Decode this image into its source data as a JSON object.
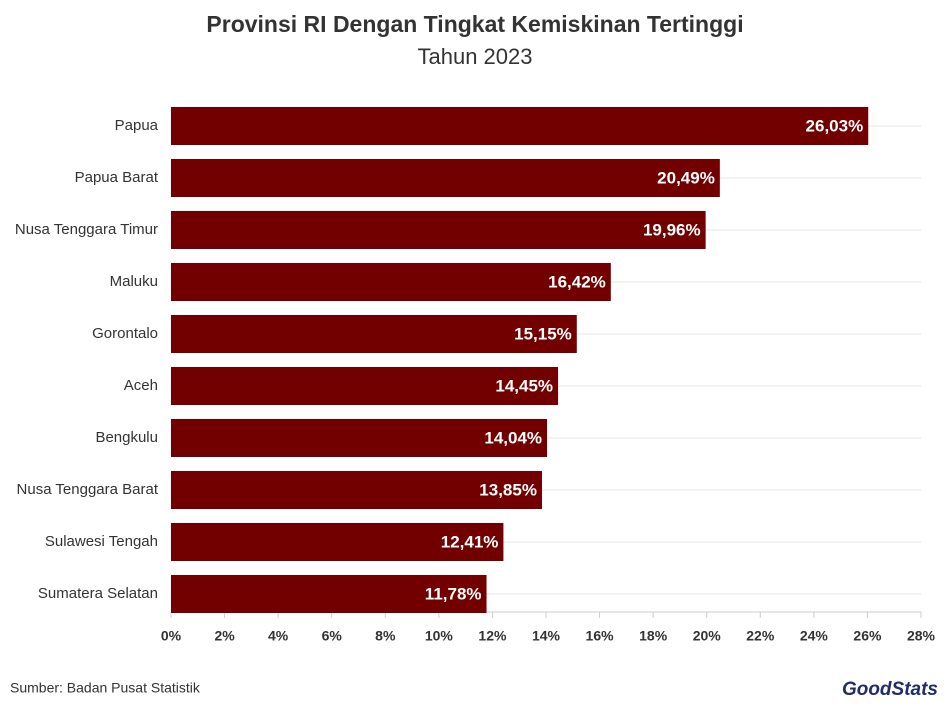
{
  "chart_data": {
    "type": "bar",
    "orientation": "horizontal",
    "title": "Provinsi RI Dengan Tingkat Kemiskinan Tertinggi",
    "subtitle": "Tahun 2023",
    "categories": [
      "Papua",
      "Papua Barat",
      "Nusa Tenggara Timur",
      "Maluku",
      "Gorontalo",
      "Aceh",
      "Bengkulu",
      "Nusa Tenggara Barat",
      "Sulawesi Tengah",
      "Sumatera Selatan"
    ],
    "values": [
      26.03,
      20.49,
      19.96,
      16.42,
      15.15,
      14.45,
      14.04,
      13.85,
      12.41,
      11.78
    ],
    "value_labels": [
      "26,03%",
      "20,49%",
      "19,96%",
      "16,42%",
      "15,15%",
      "14,45%",
      "14,04%",
      "13,85%",
      "12,41%",
      "11,78%"
    ],
    "color": "#730000",
    "xlim": [
      0,
      28
    ],
    "xticks": [
      {
        "value": 0,
        "label": "0%"
      },
      {
        "value": 2,
        "label": "2%"
      },
      {
        "value": 4,
        "label": "4%"
      },
      {
        "value": 6,
        "label": "6%"
      },
      {
        "value": 8,
        "label": "8%"
      },
      {
        "value": 10,
        "label": "10%"
      },
      {
        "value": 12,
        "label": "12%"
      },
      {
        "value": 14,
        "label": "14%"
      },
      {
        "value": 16,
        "label": "16%"
      },
      {
        "value": 18,
        "label": "18%"
      },
      {
        "value": 20,
        "label": "20%"
      },
      {
        "value": 22,
        "label": "22%"
      },
      {
        "value": 24,
        "label": "24%"
      },
      {
        "value": 26,
        "label": "26%"
      },
      {
        "value": 28,
        "label": "28%"
      }
    ],
    "source": "Sumber: Badan Pusat Statistik",
    "logo": "GoodStats"
  }
}
